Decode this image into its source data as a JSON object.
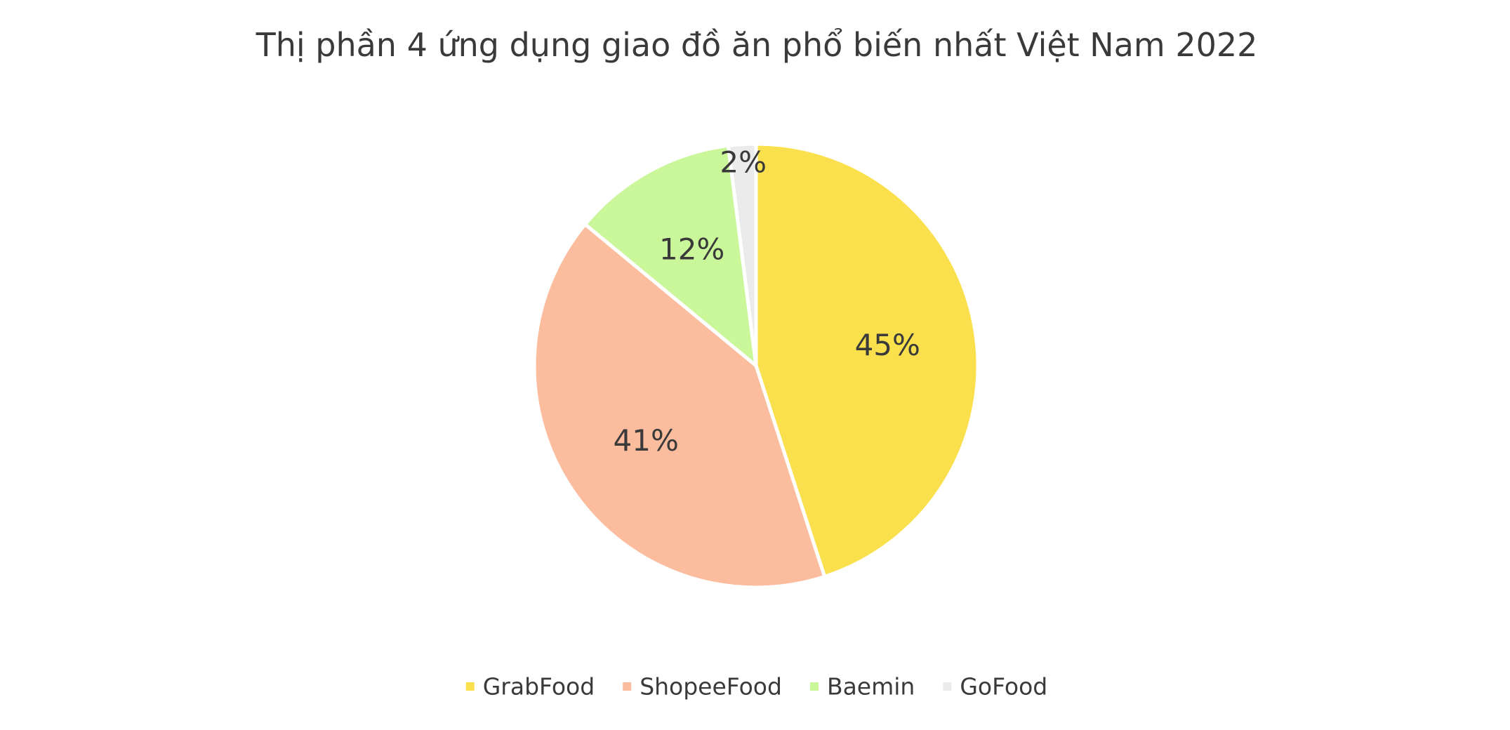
{
  "chart_data": {
    "type": "pie",
    "title": "Thị phần 4 ứng dụng giao đồ ăn phổ biến nhất Việt Nam 2022",
    "categories": [
      "GrabFood",
      "ShopeeFood",
      "Baemin",
      "GoFood"
    ],
    "values": [
      45,
      41,
      12,
      2
    ],
    "data_labels": [
      "45%",
      "41%",
      "12%",
      "2%"
    ],
    "colors": [
      "#FAE04C",
      "#FCBD9F",
      "#C9F79A",
      "#EBEBEB"
    ],
    "legend_position": "bottom",
    "start_angle": "12 o'clock, clockwise"
  }
}
